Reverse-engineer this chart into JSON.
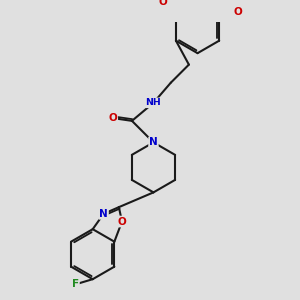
{
  "background_color": "#e0e0e0",
  "figsize": [
    3.0,
    3.0
  ],
  "dpi": 100,
  "atom_colors": {
    "C": "#1a1a1a",
    "N": "#0000cc",
    "O": "#cc0000",
    "F": "#228b22",
    "H": "#666666"
  },
  "bond_color": "#1a1a1a",
  "bond_width": 1.5,
  "font_size_atom": 7.5
}
